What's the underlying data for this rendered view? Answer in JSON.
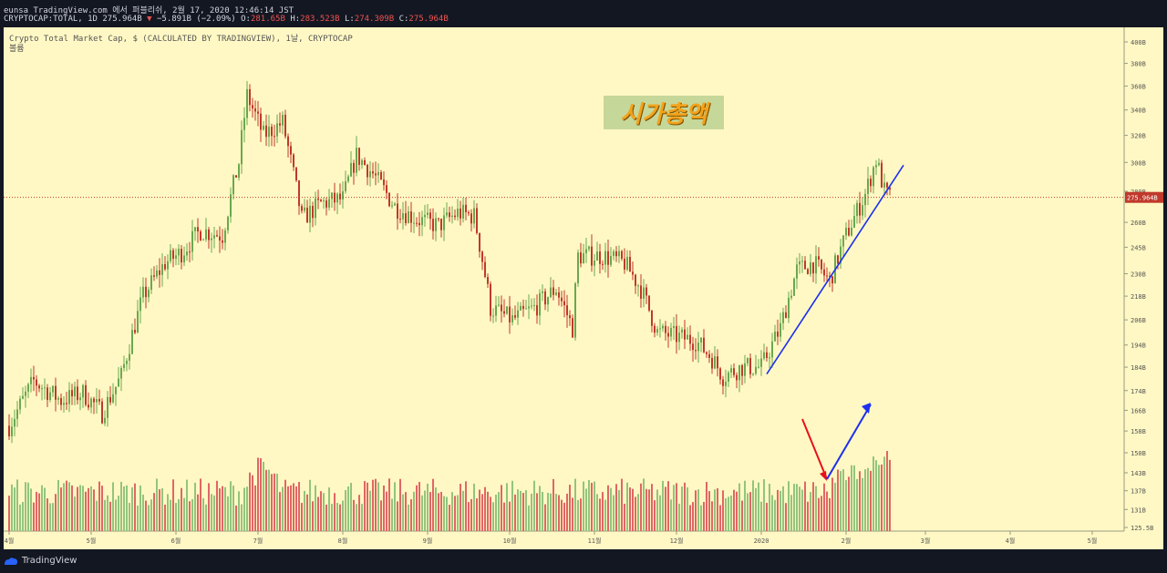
{
  "header": {
    "publisher": "eunsa TradingView.com 에서 퍼블리쉬, 2월 17, 2020 12:46:14 JST",
    "symbol": "CRYPTOCAP:TOTAL, 1D",
    "last": "275.964B",
    "change_arrow": "▼",
    "change": "−5.891B (−2.09%)",
    "o_label": "O:",
    "o_val": "281.65B",
    "h_label": "H:",
    "h_val": "283.523B",
    "l_label": "L:",
    "l_val": "274.309B",
    "c_label": "C:",
    "c_val": "275.964B"
  },
  "legend": {
    "title": "Crypto Total Market Cap, $ (CALCULATED BY TRADINGVIEW), 1날, CRYPTOCAP",
    "volume": "볼륨"
  },
  "annotation_text": "시가총액",
  "footer": {
    "brand": "TradingView"
  },
  "colors": {
    "bull": "#6aa84f",
    "bear": "#c0392b",
    "vol_bull": "#93c47d",
    "vol_bear": "#e06666",
    "price_line": "#c0392b",
    "trend_blue": "#1d2ff0",
    "arrow_red": "#e8101a"
  },
  "chart_data": {
    "type": "candlestick",
    "title": "Crypto Total Market Cap, $ (CALCULATED BY TRADINGVIEW), 1날, CRYPTOCAP",
    "current_price": "275.964B",
    "current_price_value": 275.964,
    "y_axis_labels": [
      "400B",
      "380B",
      "360B",
      "340B",
      "320B",
      "300B",
      "280B",
      "260B",
      "245B",
      "230B",
      "218B",
      "206B",
      "194B",
      "184B",
      "174B",
      "166B",
      "158B",
      "150B",
      "143B",
      "137B",
      "131B",
      "125.5B"
    ],
    "x_axis_labels": [
      "4월",
      "5월",
      "6월",
      "7월",
      "8월",
      "9월",
      "10월",
      "11월",
      "12월",
      "2020",
      "2월",
      "3월",
      "4월",
      "5월"
    ],
    "x_axis_dates": [
      "2019-04-01",
      "2019-05-01",
      "2019-06-01",
      "2019-07-01",
      "2019-08-01",
      "2019-09-01",
      "2019-10-01",
      "2019-11-01",
      "2019-12-01",
      "2020-01-01",
      "2020-02-01",
      "2020-03-01",
      "2020-04-01",
      "2020-05-01"
    ],
    "price_path": [
      {
        "date": "2019-04-01",
        "price": 160
      },
      {
        "date": "2019-04-10",
        "price": 178
      },
      {
        "date": "2019-04-20",
        "price": 170
      },
      {
        "date": "2019-04-28",
        "price": 173
      },
      {
        "date": "2019-05-05",
        "price": 165
      },
      {
        "date": "2019-05-12",
        "price": 180
      },
      {
        "date": "2019-05-20",
        "price": 218
      },
      {
        "date": "2019-05-28",
        "price": 236
      },
      {
        "date": "2019-06-03",
        "price": 242
      },
      {
        "date": "2019-06-10",
        "price": 255
      },
      {
        "date": "2019-06-18",
        "price": 252
      },
      {
        "date": "2019-06-24",
        "price": 300
      },
      {
        "date": "2019-06-27",
        "price": 352
      },
      {
        "date": "2019-07-03",
        "price": 320
      },
      {
        "date": "2019-07-10",
        "price": 330
      },
      {
        "date": "2019-07-17",
        "price": 262
      },
      {
        "date": "2019-07-24",
        "price": 272
      },
      {
        "date": "2019-08-01",
        "price": 275
      },
      {
        "date": "2019-08-06",
        "price": 305
      },
      {
        "date": "2019-08-12",
        "price": 292
      },
      {
        "date": "2019-08-20",
        "price": 270
      },
      {
        "date": "2019-08-28",
        "price": 262
      },
      {
        "date": "2019-09-05",
        "price": 258
      },
      {
        "date": "2019-09-12",
        "price": 266
      },
      {
        "date": "2019-09-18",
        "price": 264
      },
      {
        "date": "2019-09-24",
        "price": 212
      },
      {
        "date": "2019-10-02",
        "price": 206
      },
      {
        "date": "2019-10-10",
        "price": 212
      },
      {
        "date": "2019-10-18",
        "price": 222
      },
      {
        "date": "2019-10-24",
        "price": 202
      },
      {
        "date": "2019-10-26",
        "price": 240
      },
      {
        "date": "2019-11-04",
        "price": 240
      },
      {
        "date": "2019-11-12",
        "price": 236
      },
      {
        "date": "2019-11-18",
        "price": 222
      },
      {
        "date": "2019-11-24",
        "price": 200
      },
      {
        "date": "2019-12-01",
        "price": 198
      },
      {
        "date": "2019-12-08",
        "price": 196
      },
      {
        "date": "2019-12-14",
        "price": 188
      },
      {
        "date": "2019-12-18",
        "price": 180
      },
      {
        "date": "2019-12-25",
        "price": 184
      },
      {
        "date": "2020-01-01",
        "price": 184
      },
      {
        "date": "2020-01-08",
        "price": 202
      },
      {
        "date": "2020-01-14",
        "price": 232
      },
      {
        "date": "2020-01-20",
        "price": 236
      },
      {
        "date": "2020-01-26",
        "price": 226
      },
      {
        "date": "2020-02-01",
        "price": 252
      },
      {
        "date": "2020-02-08",
        "price": 278
      },
      {
        "date": "2020-02-12",
        "price": 302
      },
      {
        "date": "2020-02-15",
        "price": 280
      },
      {
        "date": "2020-02-17",
        "price": 275.964
      }
    ],
    "volume_profile_note": "Volume bars along bottom; rising sharply in late Jan–Feb 2020"
  }
}
